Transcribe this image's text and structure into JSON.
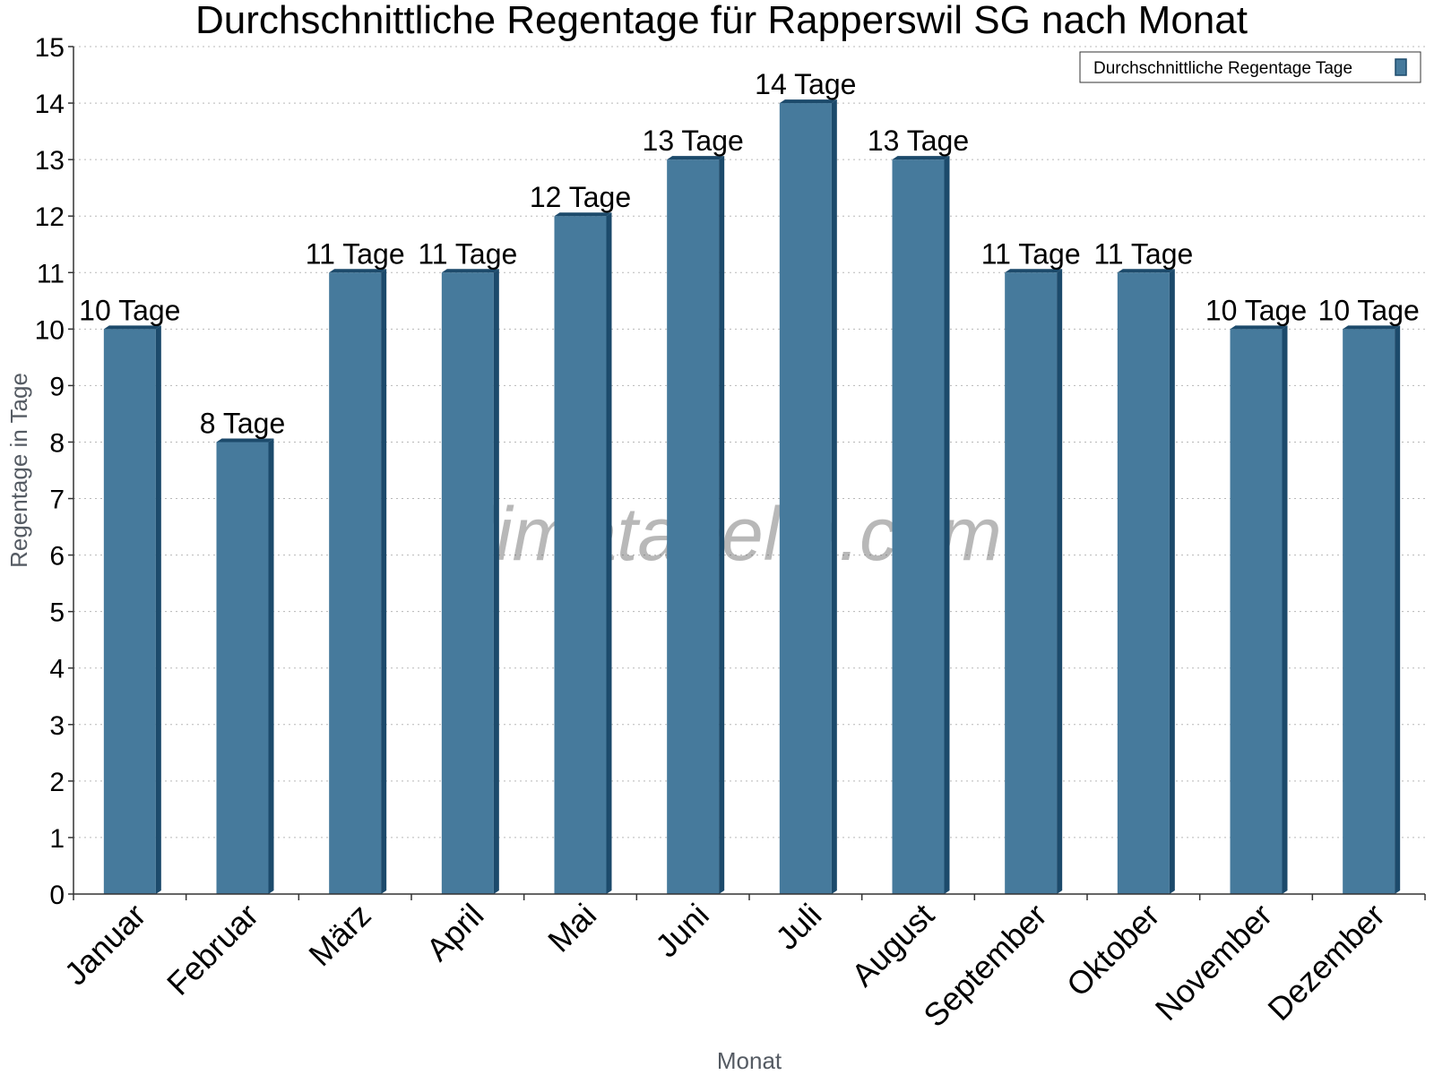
{
  "chart_data": {
    "type": "bar",
    "title": "Durchschnittliche Regentage für Rapperswil SG nach Monat",
    "xlabel": "Monat",
    "ylabel": "Regentage in Tage",
    "ylim": [
      0,
      15
    ],
    "yticks": [
      "0",
      "1",
      "2",
      "3",
      "4",
      "5",
      "6",
      "7",
      "8",
      "9",
      "10",
      "11",
      "12",
      "13",
      "14",
      "15"
    ],
    "grid": true,
    "legend_position": "top-right",
    "categories": [
      "Januar",
      "Februar",
      "März",
      "April",
      "Mai",
      "Juni",
      "Juli",
      "August",
      "September",
      "Oktober",
      "November",
      "Dezember"
    ],
    "series": [
      {
        "name": "Durchschnittliche Regentage Tage",
        "values": [
          10,
          8,
          11,
          11,
          12,
          13,
          14,
          13,
          11,
          11,
          10,
          10
        ],
        "labels": [
          "10 Tage",
          "8 Tage",
          "11 Tage",
          "11 Tage",
          "12 Tage",
          "13 Tage",
          "14 Tage",
          "13 Tage",
          "11 Tage",
          "11 Tage",
          "10 Tage",
          "10 Tage"
        ],
        "color": "#467a9c",
        "color_dark": "#1c4a6b"
      }
    ],
    "watermark": "klimatabelle.com"
  }
}
